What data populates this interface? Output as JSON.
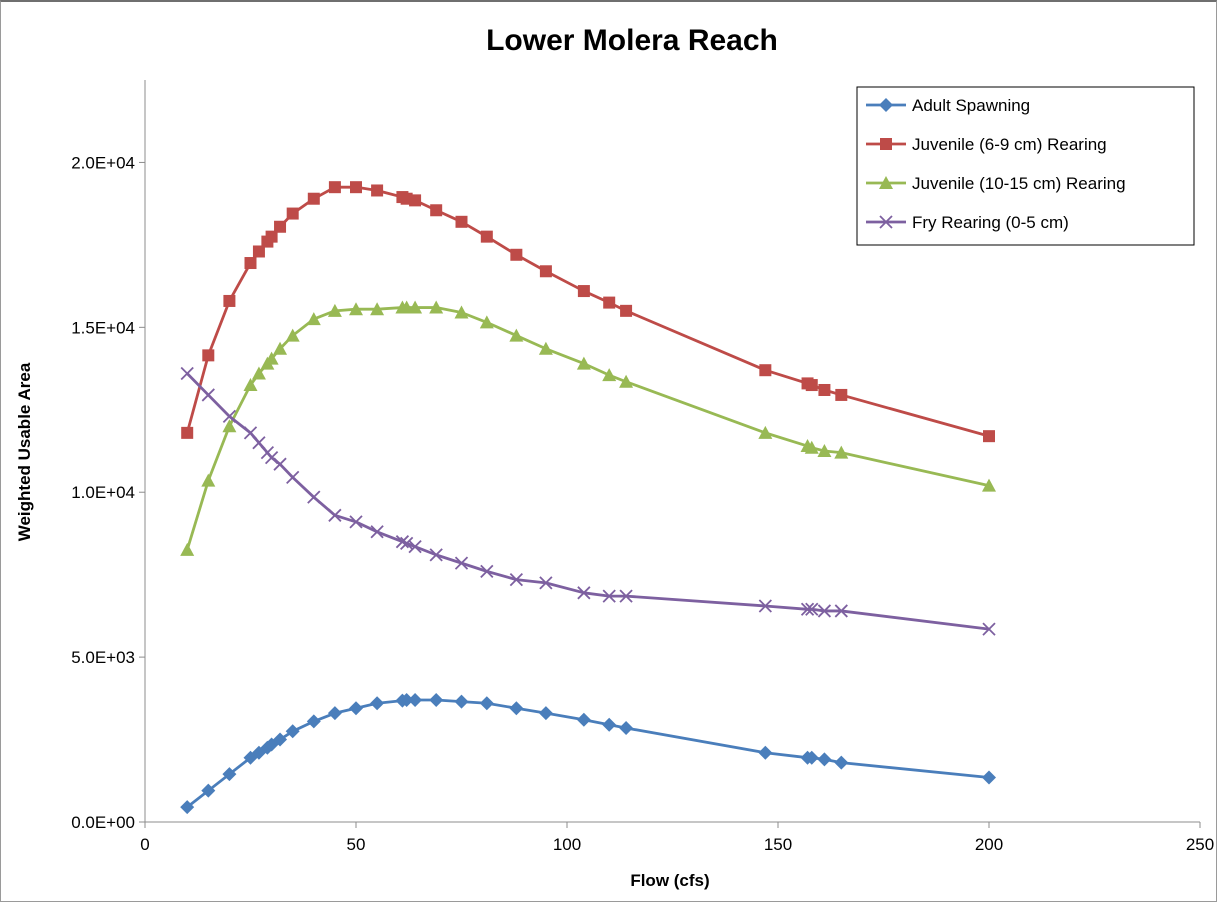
{
  "chart_data": {
    "type": "line",
    "title": "Lower Molera Reach",
    "xlabel": "Flow (cfs)",
    "ylabel": "Weighted Usable Area",
    "xlim": [
      0,
      250
    ],
    "ylim": [
      0,
      22500
    ],
    "x_ticks": [
      0,
      50,
      100,
      150,
      200,
      250
    ],
    "x_tick_labels": [
      "0",
      "50",
      "100",
      "150",
      "200",
      "250"
    ],
    "y_ticks": [
      0,
      5000,
      10000,
      15000,
      20000
    ],
    "y_tick_labels": [
      "0.0E+00",
      "5.0E+03",
      "1.0E+04",
      "1.5E+04",
      "2.0E+04"
    ],
    "grid": false,
    "legend_position": "top-right",
    "series": [
      {
        "name": "Adult Spawning",
        "color": "#4a7ebb",
        "marker": "diamond",
        "x": [
          10,
          15,
          20,
          25,
          27,
          29,
          30,
          32,
          35,
          40,
          45,
          50,
          55,
          61,
          62,
          64,
          69,
          75,
          81,
          88,
          95,
          104,
          110,
          114,
          147,
          157,
          158,
          161,
          165,
          200
        ],
        "y": [
          450,
          950,
          1450,
          1950,
          2100,
          2250,
          2350,
          2500,
          2750,
          3050,
          3300,
          3450,
          3600,
          3680,
          3700,
          3700,
          3700,
          3650,
          3600,
          3450,
          3300,
          3100,
          2950,
          2850,
          2100,
          1950,
          1950,
          1900,
          1800,
          1350
        ]
      },
      {
        "name": "Juvenile (6-9 cm) Rearing",
        "color": "#be4b48",
        "marker": "square",
        "x": [
          10,
          15,
          20,
          25,
          27,
          29,
          30,
          32,
          35,
          40,
          45,
          50,
          55,
          61,
          62,
          64,
          69,
          75,
          81,
          88,
          95,
          104,
          110,
          114,
          147,
          157,
          158,
          161,
          165,
          200
        ],
        "y": [
          11800,
          14150,
          15800,
          16950,
          17300,
          17600,
          17750,
          18050,
          18450,
          18900,
          19250,
          19250,
          19150,
          18950,
          18900,
          18850,
          18550,
          18200,
          17750,
          17200,
          16700,
          16100,
          15750,
          15500,
          13700,
          13300,
          13250,
          13100,
          12950,
          11700
        ]
      },
      {
        "name": "Juvenile (10-15 cm) Rearing",
        "color": "#98b954",
        "marker": "triangle",
        "x": [
          10,
          15,
          20,
          25,
          27,
          29,
          30,
          32,
          35,
          40,
          45,
          50,
          55,
          61,
          62,
          64,
          69,
          75,
          81,
          88,
          95,
          104,
          110,
          114,
          147,
          157,
          158,
          161,
          165,
          200
        ],
        "y": [
          8250,
          10350,
          12000,
          13250,
          13600,
          13900,
          14050,
          14350,
          14750,
          15250,
          15500,
          15550,
          15550,
          15600,
          15600,
          15600,
          15600,
          15450,
          15150,
          14750,
          14350,
          13900,
          13550,
          13350,
          11800,
          11400,
          11350,
          11250,
          11200,
          10200
        ]
      },
      {
        "name": "Fry Rearing (0-5 cm)",
        "color": "#7d60a0",
        "marker": "x",
        "x": [
          10,
          15,
          20,
          25,
          27,
          29,
          30,
          32,
          35,
          40,
          45,
          50,
          55,
          61,
          62,
          64,
          69,
          75,
          81,
          88,
          95,
          104,
          110,
          114,
          147,
          157,
          158,
          161,
          165,
          200
        ],
        "y": [
          13600,
          12950,
          12300,
          11800,
          11500,
          11200,
          11050,
          10850,
          10450,
          9850,
          9300,
          9100,
          8800,
          8500,
          8450,
          8350,
          8100,
          7850,
          7600,
          7350,
          7250,
          6950,
          6850,
          6850,
          6550,
          6450,
          6450,
          6400,
          6400,
          5850
        ]
      }
    ]
  }
}
